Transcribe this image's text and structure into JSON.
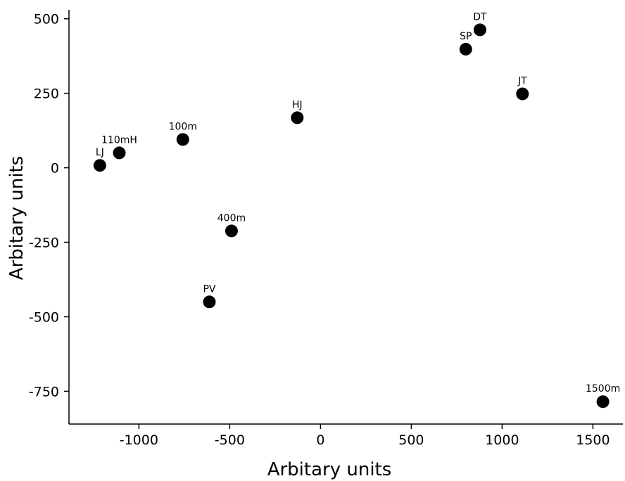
{
  "chart_data": {
    "type": "scatter",
    "title": "",
    "xlabel": "Arbitary units",
    "ylabel": "Arbitary units",
    "xlim": [
      -1385,
      1665
    ],
    "ylim": [
      -860,
      530
    ],
    "x_ticks": [
      -1000,
      -500,
      0,
      500,
      1000,
      1500
    ],
    "x_tick_labels": [
      "-1000",
      "-500",
      "0",
      "500",
      "1000",
      "1500"
    ],
    "y_ticks": [
      500,
      250,
      0,
      -250,
      -500,
      -750
    ],
    "y_tick_labels": [
      "500",
      "250",
      "0",
      "-250",
      "-500",
      "-750"
    ],
    "grid": false,
    "marker_color": "#000000",
    "points": [
      {
        "label": "LJ",
        "x": -1215,
        "y": 8
      },
      {
        "label": "110mH",
        "x": -1108,
        "y": 50
      },
      {
        "label": "100m",
        "x": -758,
        "y": 95
      },
      {
        "label": "HJ",
        "x": -128,
        "y": 168
      },
      {
        "label": "400m",
        "x": -490,
        "y": -212
      },
      {
        "label": "PV",
        "x": -612,
        "y": -450
      },
      {
        "label": "SP",
        "x": 800,
        "y": 398
      },
      {
        "label": "DT",
        "x": 878,
        "y": 463
      },
      {
        "label": "JT",
        "x": 1112,
        "y": 248
      },
      {
        "label": "1500m",
        "x": 1555,
        "y": -785
      }
    ]
  }
}
